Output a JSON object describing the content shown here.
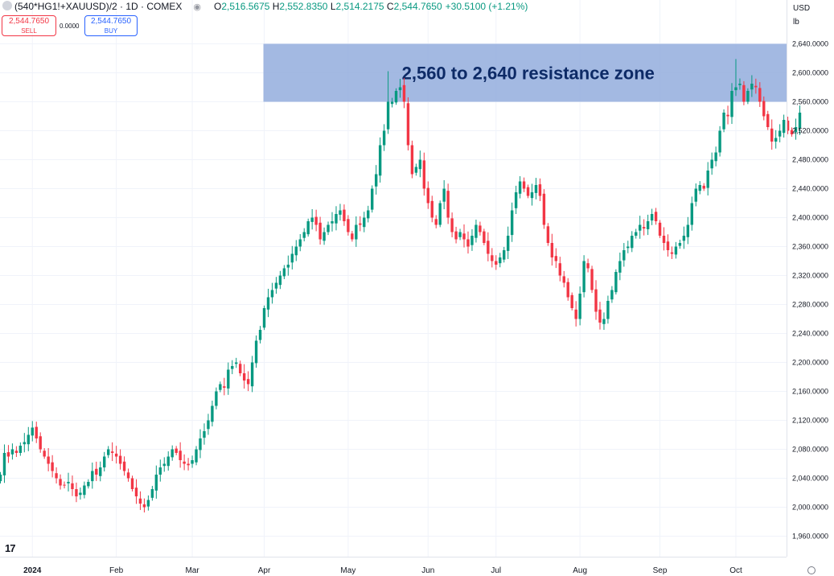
{
  "header": {
    "symbol": "(540*HG1!+XAUUSD)/2 · 1D · COMEX",
    "open_label": "O",
    "open": "2,516.5675",
    "high_label": "H",
    "high": "2,552.8350",
    "low_label": "L",
    "low": "2,514.2175",
    "close_label": "C",
    "close": "2,544.7650",
    "change": "+30.5100 (+1.21%)"
  },
  "trade": {
    "sell_price": "2,544.7650",
    "sell_label": "SELL",
    "spread": "0.0000",
    "buy_price": "2,544.7650",
    "buy_label": "BUY"
  },
  "currency": "USD",
  "unit": "lb",
  "logo_text": "17",
  "colors": {
    "up": "#089981",
    "down": "#f23645",
    "zone": "#8faadc",
    "zone_text": "#0d2a66"
  },
  "chart_data": {
    "type": "candlestick",
    "ylim": [
      1930,
      2655
    ],
    "yticks": [
      "2,640.0000",
      "2,600.0000",
      "2,560.0000",
      "2,520.0000",
      "2,480.0000",
      "2,440.0000",
      "2,400.0000",
      "2,360.0000",
      "2,320.0000",
      "2,280.0000",
      "2,240.0000",
      "2,200.0000",
      "2,160.0000",
      "2,120.0000",
      "2,080.0000",
      "2,040.0000",
      "2,000.0000",
      "1,960.0000"
    ],
    "xticks": [
      {
        "label": "2024",
        "index": 8
      },
      {
        "label": "Feb",
        "index": 29
      },
      {
        "label": "Mar",
        "index": 48
      },
      {
        "label": "Apr",
        "index": 66
      },
      {
        "label": "May",
        "index": 87
      },
      {
        "label": "Jun",
        "index": 107
      },
      {
        "label": "Jul",
        "index": 124
      },
      {
        "label": "Aug",
        "index": 145
      },
      {
        "label": "Sep",
        "index": 165
      },
      {
        "label": "Oct",
        "index": 184
      }
    ],
    "zone": {
      "low": 2560,
      "high": 2640,
      "start_index": 66,
      "label": "2,560 to 2,640 resistance zone"
    },
    "close": [
      2045,
      2075,
      2070,
      2080,
      2075,
      2085,
      2090,
      2100,
      2110,
      2095,
      2080,
      2070,
      2060,
      2050,
      2040,
      2030,
      2030,
      2035,
      2025,
      2015,
      2020,
      2030,
      2035,
      2050,
      2045,
      2055,
      2070,
      2080,
      2075,
      2070,
      2060,
      2050,
      2040,
      2025,
      2015,
      2005,
      2000,
      2010,
      2025,
      2045,
      2055,
      2060,
      2070,
      2080,
      2075,
      2065,
      2060,
      2058,
      2065,
      2080,
      2095,
      2105,
      2120,
      2140,
      2160,
      2170,
      2165,
      2190,
      2195,
      2200,
      2185,
      2175,
      2170,
      2200,
      2230,
      2245,
      2275,
      2290,
      2300,
      2310,
      2320,
      2330,
      2335,
      2350,
      2360,
      2370,
      2380,
      2395,
      2400,
      2390,
      2370,
      2380,
      2390,
      2395,
      2405,
      2410,
      2395,
      2380,
      2370,
      2390,
      2390,
      2400,
      2410,
      2440,
      2460,
      2500,
      2520,
      2560,
      2560,
      2575,
      2580,
      2560,
      2500,
      2460,
      2470,
      2480,
      2440,
      2420,
      2400,
      2390,
      2420,
      2440,
      2400,
      2380,
      2370,
      2380,
      2370,
      2360,
      2375,
      2390,
      2380,
      2365,
      2350,
      2340,
      2335,
      2345,
      2355,
      2375,
      2410,
      2435,
      2450,
      2440,
      2430,
      2435,
      2445,
      2430,
      2390,
      2365,
      2345,
      2340,
      2320,
      2310,
      2290,
      2275,
      2260,
      2295,
      2340,
      2330,
      2300,
      2270,
      2255,
      2260,
      2285,
      2300,
      2325,
      2340,
      2355,
      2360,
      2375,
      2380,
      2390,
      2385,
      2395,
      2405,
      2395,
      2375,
      2365,
      2355,
      2350,
      2360,
      2365,
      2375,
      2390,
      2420,
      2440,
      2445,
      2440,
      2465,
      2480,
      2490,
      2520,
      2545,
      2540,
      2575,
      2580,
      2585,
      2560,
      2575,
      2585,
      2580,
      2560,
      2540,
      2525,
      2505,
      2510,
      2520,
      2535,
      2520,
      2515,
      2525,
      2545
    ],
    "series_note": ""
  }
}
